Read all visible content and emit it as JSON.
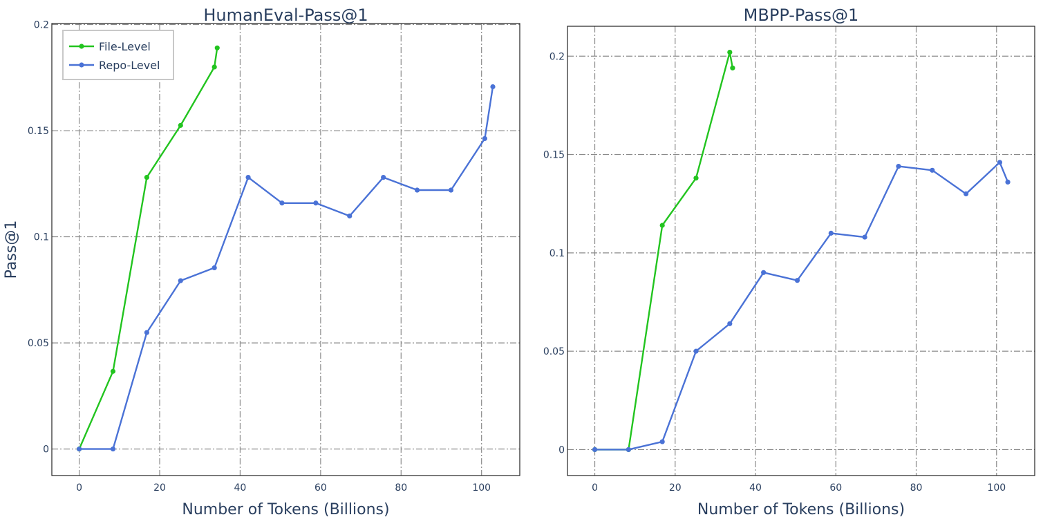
{
  "chart_data": [
    {
      "type": "line",
      "title": "HumanEval-Pass@1",
      "xlabel": "Number of Tokens (Billions)",
      "ylabel": "Pass@1",
      "xlim": [
        -6.8,
        109.5
      ],
      "ylim": [
        -0.0125,
        0.2005
      ],
      "xticks": [
        0,
        20,
        40,
        60,
        80,
        100
      ],
      "yticks": [
        0,
        0.05,
        0.1,
        0.15,
        0.2
      ],
      "ytick_labels": [
        "0",
        "0.05",
        "0.1",
        "0.15",
        "0.2"
      ],
      "grid": true,
      "legend": {
        "placement": "top-left"
      },
      "series": [
        {
          "name": "File-Level",
          "color": "#22c41f",
          "x": [
            0,
            8.4,
            16.8,
            25.2,
            33.6,
            34.3
          ],
          "y": [
            0,
            0.0366,
            0.128,
            0.1525,
            0.18,
            0.189
          ]
        },
        {
          "name": "Repo-Level",
          "color": "#4a72d6",
          "x": [
            0,
            8.4,
            16.8,
            25.2,
            33.6,
            42,
            50.4,
            58.8,
            67.2,
            75.6,
            84,
            92.4,
            100.8,
            102.8
          ],
          "y": [
            0,
            0,
            0.0549,
            0.0793,
            0.0854,
            0.128,
            0.1159,
            0.1159,
            0.1098,
            0.128,
            0.122,
            0.122,
            0.1463,
            0.1707
          ]
        }
      ]
    },
    {
      "type": "line",
      "title": "MBPP-Pass@1",
      "xlabel": "Number of Tokens (Billions)",
      "ylabel": "",
      "xlim": [
        -6.8,
        109.5
      ],
      "ylim": [
        -0.0132,
        0.2152
      ],
      "xticks": [
        0,
        20,
        40,
        60,
        80,
        100
      ],
      "yticks": [
        0,
        0.05,
        0.1,
        0.15,
        0.2
      ],
      "ytick_labels": [
        "0",
        "0.05",
        "0.1",
        "0.15",
        "0.2"
      ],
      "grid": true,
      "series": [
        {
          "name": "File-Level",
          "color": "#22c41f",
          "x": [
            0,
            8.4,
            16.8,
            25.2,
            33.6,
            34.3
          ],
          "y": [
            0,
            0,
            0.114,
            0.138,
            0.202,
            0.194
          ]
        },
        {
          "name": "Repo-Level",
          "color": "#4a72d6",
          "x": [
            0,
            8.4,
            16.8,
            25.2,
            33.6,
            42,
            50.4,
            58.8,
            67.2,
            75.6,
            84,
            92.4,
            100.8,
            102.8
          ],
          "y": [
            0,
            0,
            0.004,
            0.05,
            0.064,
            0.09,
            0.086,
            0.11,
            0.108,
            0.144,
            0.142,
            0.13,
            0.146,
            0.136
          ]
        }
      ]
    }
  ]
}
